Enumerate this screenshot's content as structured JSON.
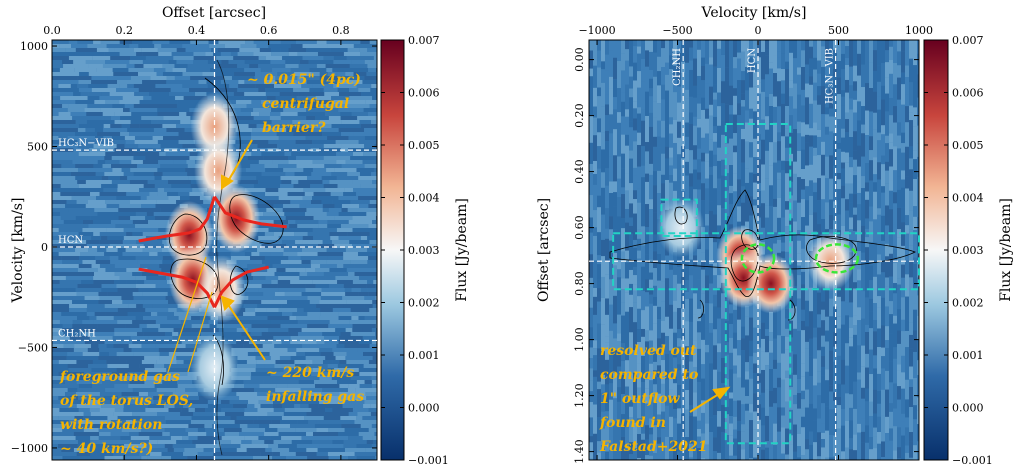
{
  "colors": {
    "cmap_low": "#08306b",
    "cmap_mid_low": "#3a7ab3",
    "cmap_mid": "#f7f7f7",
    "cmap_mid_high": "#e39a74",
    "cmap_high": "#67001f",
    "contour": "#000000",
    "ref_line": "#ffffff",
    "red_curve": "#e8261e",
    "annotation": "#f5b400",
    "box": "#22d3c4",
    "ellipse": "#39e639"
  },
  "chart_data": [
    {
      "type": "heatmap",
      "panel": "left",
      "xlabel": "Offset [arcsec]",
      "ylabel": "Velocity [km/s]",
      "x_axis_position": "top",
      "xlim": [
        0.0,
        0.9
      ],
      "ylim": [
        -1060,
        1030
      ],
      "xticks": [
        0.0,
        0.2,
        0.4,
        0.6,
        0.8
      ],
      "xtick_labels": [
        "0.0",
        "0.2",
        "0.4",
        "0.6",
        "0.8"
      ],
      "yticks": [
        -1000,
        -500,
        0,
        500,
        1000
      ],
      "ytick_labels": [
        "−1000",
        "−500",
        "0",
        "500",
        "1000"
      ],
      "colorbar": {
        "label": "Flux [Jy/beam]",
        "min": -0.001,
        "max": 0.007,
        "ticks": [
          -0.001,
          0.0,
          0.001,
          0.002,
          0.003,
          0.004,
          0.005,
          0.006,
          0.007
        ],
        "tick_labels": [
          "−0.001",
          "0.000",
          "0.001",
          "0.002",
          "0.003",
          "0.004",
          "0.005",
          "0.006",
          "0.007"
        ]
      },
      "reference_lines": [
        {
          "orientation": "horizontal",
          "value": 482,
          "label": "HC3N−VIB"
        },
        {
          "orientation": "horizontal",
          "value": 0,
          "label": "HCN"
        },
        {
          "orientation": "horizontal",
          "value": -465,
          "label": "CH2NH"
        },
        {
          "orientation": "vertical",
          "value": 0.45
        }
      ],
      "emission_blobs": [
        {
          "x": 0.45,
          "y": 600,
          "peak": 0.005
        },
        {
          "x": 0.46,
          "y": 380,
          "peak": 0.0042
        },
        {
          "x": 0.38,
          "y": 60,
          "peak": 0.0058
        },
        {
          "x": 0.51,
          "y": 140,
          "peak": 0.0062
        },
        {
          "x": 0.39,
          "y": -165,
          "peak": 0.0068
        },
        {
          "x": 0.47,
          "y": -210,
          "peak": 0.0048
        },
        {
          "x": 0.45,
          "y": -600,
          "peak": 0.0038
        }
      ],
      "red_curves": [
        [
          [
            0.24,
            30
          ],
          [
            0.32,
            55
          ],
          [
            0.38,
            70
          ],
          [
            0.41,
            90
          ],
          [
            0.43,
            140
          ],
          [
            0.45,
            250
          ]
        ],
        [
          [
            0.45,
            250
          ],
          [
            0.48,
            170
          ],
          [
            0.53,
            135
          ],
          [
            0.58,
            115
          ],
          [
            0.65,
            100
          ]
        ],
        [
          [
            0.24,
            -110
          ],
          [
            0.3,
            -130
          ],
          [
            0.36,
            -150
          ],
          [
            0.4,
            -175
          ],
          [
            0.43,
            -230
          ],
          [
            0.45,
            -300
          ]
        ],
        [
          [
            0.45,
            -300
          ],
          [
            0.47,
            -225
          ],
          [
            0.5,
            -165
          ],
          [
            0.54,
            -125
          ],
          [
            0.6,
            -100
          ]
        ]
      ],
      "annotations": [
        {
          "lines": [
            "~ 0.015\" (4pc)",
            "centrifugal",
            "barrier?"
          ]
        },
        {
          "lines": [
            "~ 220 km/s",
            "infalling gas"
          ]
        },
        {
          "lines": [
            "foreground gas",
            "of the torus LOS,",
            "with rotation",
            "~ 40 km/s?)"
          ]
        }
      ]
    },
    {
      "type": "heatmap",
      "panel": "right",
      "xlabel": "Velocity [km/s]",
      "ylabel": "Offset [arcsec]",
      "x_axis_position": "top",
      "xlim": [
        -1050,
        1000
      ],
      "ylim": [
        1.43,
        -0.07
      ],
      "xticks": [
        -1000,
        -500,
        0,
        500,
        1000
      ],
      "xtick_labels": [
        "−1000",
        "−500",
        "0",
        "500",
        "1000"
      ],
      "yticks": [
        0.0,
        0.2,
        0.4,
        0.6,
        0.8,
        1.0,
        1.2,
        1.4
      ],
      "ytick_labels": [
        "0.00",
        "0.20",
        "0.40",
        "0.60",
        "0.80",
        "1.00",
        "1.20",
        "1.40"
      ],
      "colorbar": {
        "label": "Flux [Jy/beam]",
        "min": -0.001,
        "max": 0.007,
        "ticks": [
          -0.001,
          0.0,
          0.001,
          0.002,
          0.003,
          0.004,
          0.005,
          0.006,
          0.007
        ],
        "tick_labels": [
          "−0.001",
          "0.000",
          "0.001",
          "0.002",
          "0.003",
          "0.004",
          "0.005",
          "0.006",
          "0.007"
        ]
      },
      "reference_lines": [
        {
          "orientation": "vertical",
          "value": -465,
          "label": "CH2NH"
        },
        {
          "orientation": "vertical",
          "value": 0,
          "label": "HCN"
        },
        {
          "orientation": "vertical",
          "value": 482,
          "label": "HC3N−VIB"
        },
        {
          "orientation": "horizontal",
          "value": 0.72
        }
      ],
      "emission_blobs": [
        {
          "x": -110,
          "y": 0.7,
          "peak": 0.0065
        },
        {
          "x": -90,
          "y": 0.78,
          "peak": 0.007
        },
        {
          "x": 80,
          "y": 0.8,
          "peak": 0.0055
        },
        {
          "x": 450,
          "y": 0.72,
          "peak": 0.0042
        },
        {
          "x": -480,
          "y": 0.6,
          "peak": 0.003
        }
      ],
      "dashed_boxes": [
        {
          "x0": -200,
          "x1": 200,
          "y0": 0.23,
          "y1": 1.37
        },
        {
          "x0": -600,
          "x1": -380,
          "y0": 0.5,
          "y1": 0.63
        },
        {
          "x0": -900,
          "x1": 1000,
          "y0": 0.62,
          "y1": 0.82
        }
      ],
      "ellipses": [
        {
          "cx": 0,
          "cy": 0.71,
          "rx": 100,
          "ry": 0.05
        },
        {
          "cx": 490,
          "cy": 0.71,
          "rx": 130,
          "ry": 0.05
        }
      ],
      "annotations": [
        {
          "lines": [
            "resolved out",
            "compared to",
            "1\" outflow",
            "found in",
            "Falstad+2021"
          ]
        }
      ]
    }
  ]
}
